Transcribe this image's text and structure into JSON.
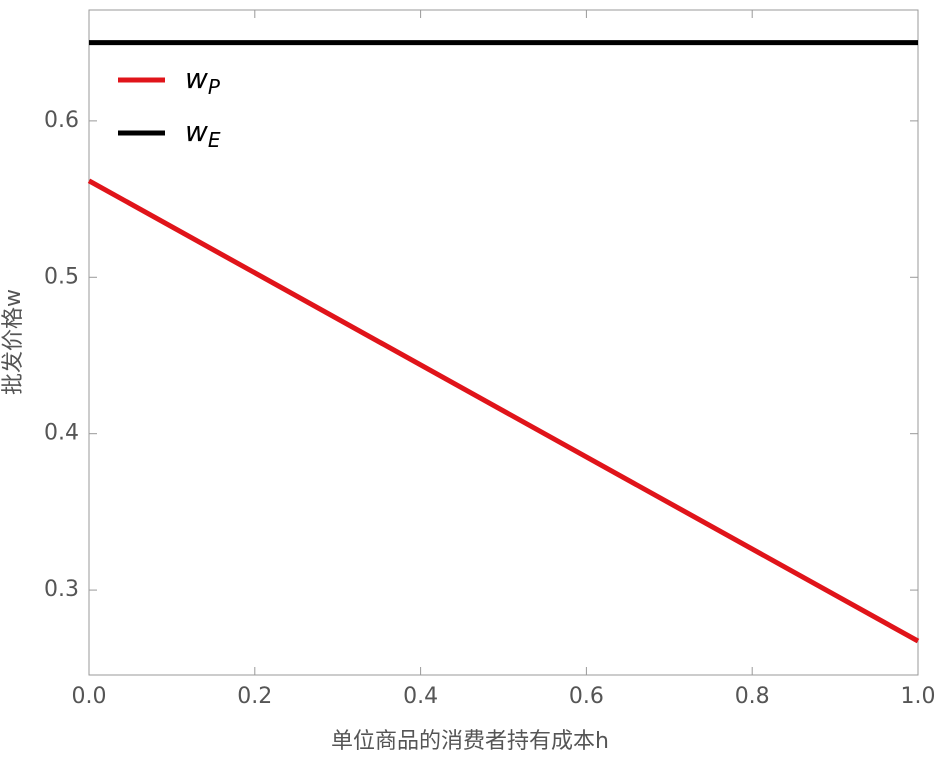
{
  "chart_data": {
    "type": "line",
    "x_label": "单位商品的消费者持有成本h",
    "y_label": "批发价格w",
    "x": [
      0,
      1
    ],
    "series": [
      {
        "name": "wP",
        "color": "#e0141a",
        "values": [
          0.5617,
          0.2674
        ]
      },
      {
        "name": "wE",
        "color": "#000000",
        "values": [
          0.65,
          0.65
        ]
      }
    ],
    "xlim": [
      0,
      1
    ],
    "ylim": [
      0.2457,
      0.6709
    ],
    "xticks": [
      {
        "value": 0,
        "label": "0.0"
      },
      0.2,
      0.4,
      0.6,
      0.8,
      {
        "value": 1,
        "label": "1.0"
      }
    ],
    "yticks": [
      0.3,
      0.4,
      0.5,
      0.6
    ],
    "legend": "top-left"
  }
}
